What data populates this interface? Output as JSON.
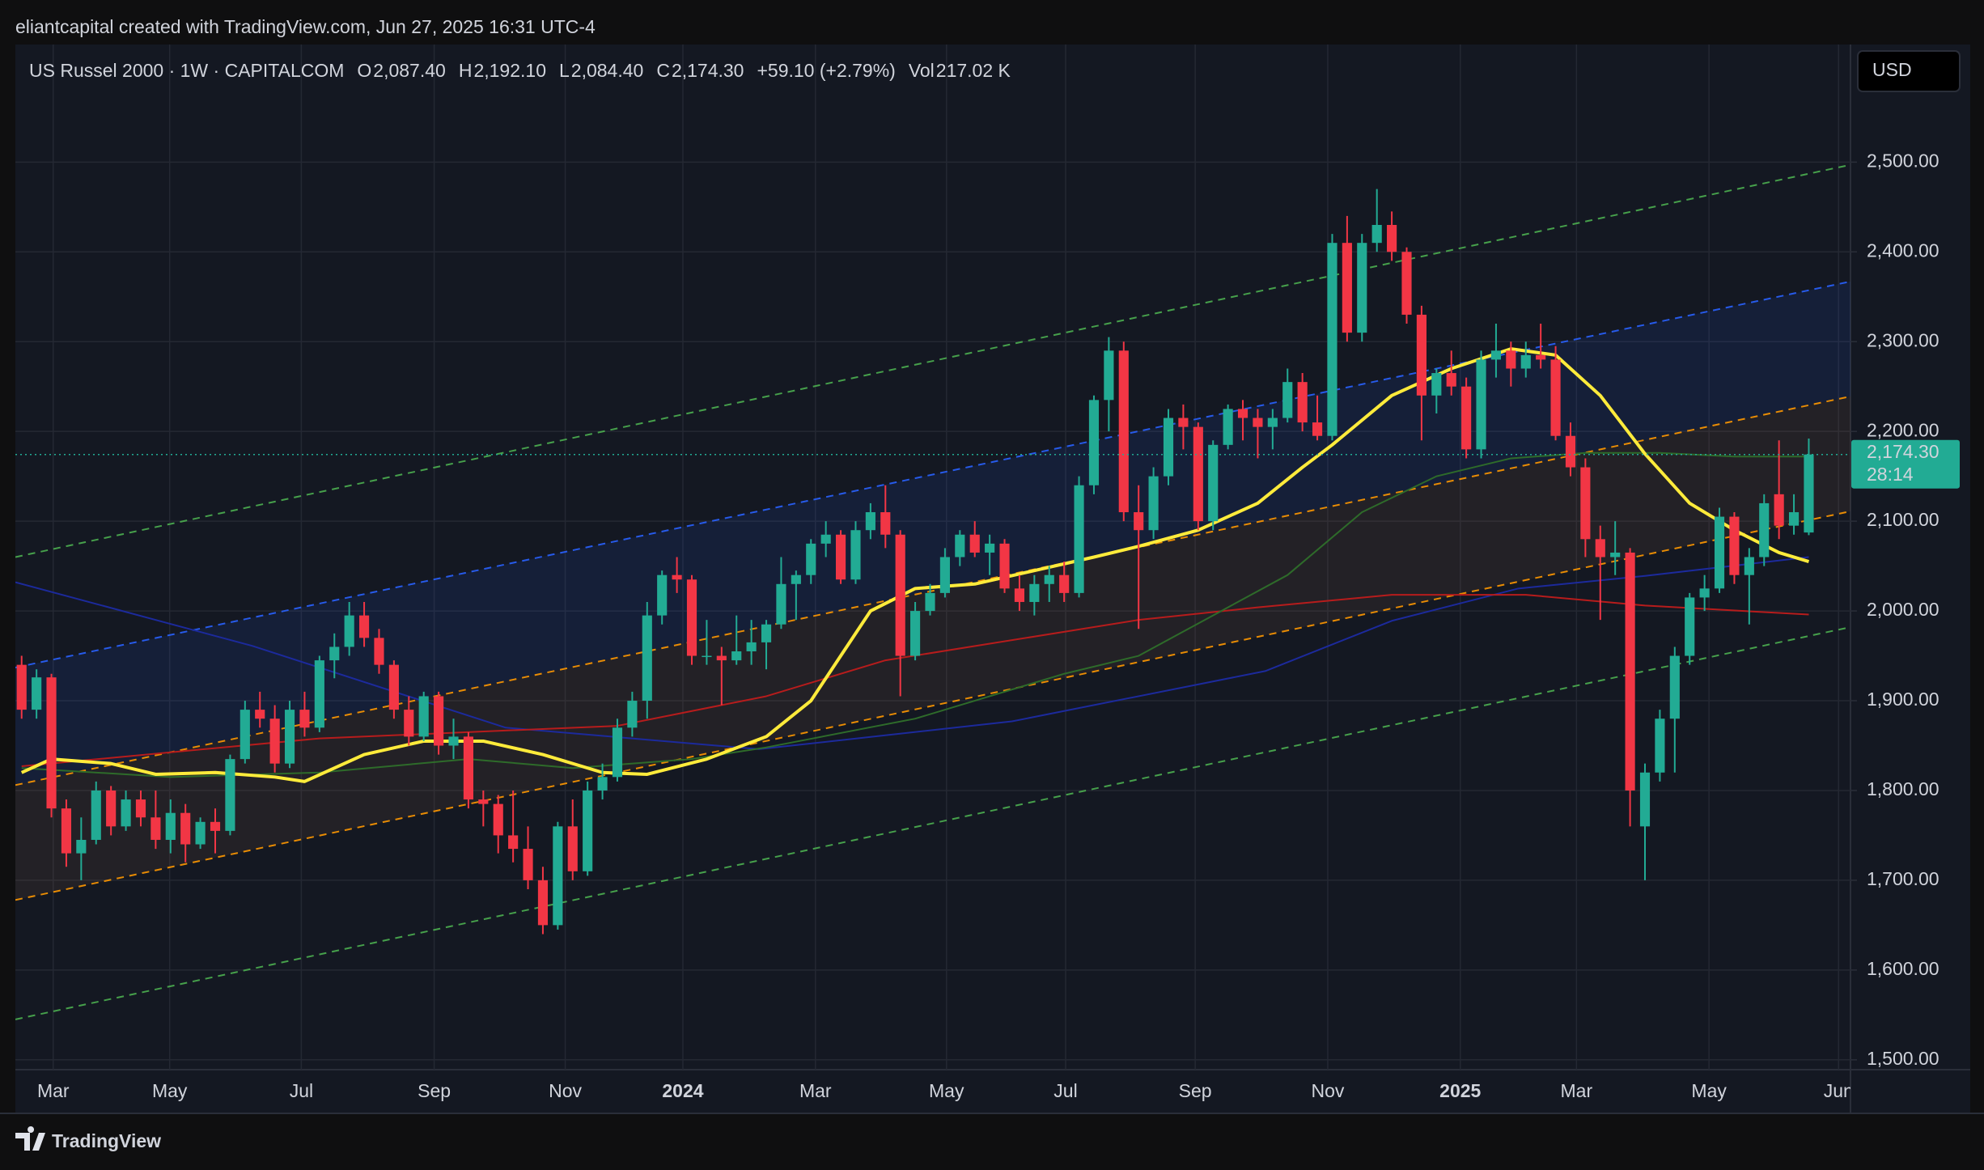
{
  "attribution": "eliantcapital created with TradingView.com, Jun 27, 2025 16:31 UTC-4",
  "brand": "TradingView",
  "chart_data": {
    "type": "candlestick",
    "title": "US Russel 2000 · 1W · CAPITALCOM",
    "currency": "USD",
    "ohlc_legend": [
      {
        "label": "O",
        "value": "2,087.40"
      },
      {
        "label": "H",
        "value": "2,192.10"
      },
      {
        "label": "L",
        "value": "2,084.40"
      },
      {
        "label": "C",
        "value": "2,174.30"
      }
    ],
    "change": "+59.10 (+2.79%)",
    "volume": {
      "label": "Vol",
      "value": "217.02 K"
    },
    "last_price": {
      "value": 2174.3,
      "label": "2,174.30"
    },
    "countdown": "28:14",
    "up_color": "#22ab94",
    "down_color": "#f23645",
    "xlim": [
      -0.42,
      122.8
    ],
    "ylim": [
      1489,
      2631
    ],
    "xticks": [
      {
        "value": 2.12,
        "label": "Mar"
      },
      {
        "value": 9.94,
        "label": "May"
      },
      {
        "value": 18.78,
        "label": "Jul"
      },
      {
        "value": 27.7,
        "label": "Sep"
      },
      {
        "value": 36.5,
        "label": "Nov"
      },
      {
        "value": 44.4,
        "label": "2024"
      },
      {
        "value": 53.3,
        "label": "Mar"
      },
      {
        "value": 62.1,
        "label": "May"
      },
      {
        "value": 70.1,
        "label": "Jul"
      },
      {
        "value": 78.8,
        "label": "Sep"
      },
      {
        "value": 87.7,
        "label": "Nov"
      },
      {
        "value": 96.6,
        "label": "2025"
      },
      {
        "value": 104.4,
        "label": "Mar"
      },
      {
        "value": 113.3,
        "label": "May"
      },
      {
        "value": 122.0,
        "label": "Jun"
      }
    ],
    "yticks": [
      {
        "value": 1500,
        "label": "1,500.00"
      },
      {
        "value": 1600,
        "label": "1,600.00"
      },
      {
        "value": 1700,
        "label": "1,700.00"
      },
      {
        "value": 1800,
        "label": "1,800.00"
      },
      {
        "value": 1900,
        "label": "1,900.00"
      },
      {
        "value": 2000,
        "label": "2,000.00"
      },
      {
        "value": 2100,
        "label": "2,100.00"
      },
      {
        "value": 2200,
        "label": "2,200.00"
      },
      {
        "value": 2300,
        "label": "2,300.00"
      },
      {
        "value": 2400,
        "label": "2,400.00"
      },
      {
        "value": 2500,
        "label": "2,500.00"
      }
    ],
    "grid": true,
    "candles": [
      [
        1940,
        1950,
        1880,
        1890
      ],
      [
        1890,
        1935,
        1880,
        1926
      ],
      [
        1926,
        1930,
        1770,
        1780
      ],
      [
        1780,
        1790,
        1715,
        1730
      ],
      [
        1730,
        1770,
        1700,
        1745
      ],
      [
        1745,
        1810,
        1740,
        1800
      ],
      [
        1800,
        1805,
        1750,
        1760
      ],
      [
        1760,
        1800,
        1755,
        1790
      ],
      [
        1790,
        1800,
        1760,
        1770
      ],
      [
        1770,
        1800,
        1735,
        1745
      ],
      [
        1745,
        1790,
        1730,
        1775
      ],
      [
        1775,
        1785,
        1720,
        1740
      ],
      [
        1740,
        1770,
        1735,
        1765
      ],
      [
        1765,
        1780,
        1730,
        1755
      ],
      [
        1755,
        1840,
        1750,
        1835
      ],
      [
        1835,
        1900,
        1830,
        1890
      ],
      [
        1890,
        1910,
        1870,
        1880
      ],
      [
        1880,
        1895,
        1820,
        1830
      ],
      [
        1830,
        1900,
        1825,
        1890
      ],
      [
        1890,
        1910,
        1860,
        1870
      ],
      [
        1870,
        1950,
        1865,
        1945
      ],
      [
        1945,
        1975,
        1925,
        1960
      ],
      [
        1960,
        2010,
        1950,
        1995
      ],
      [
        1995,
        2010,
        1960,
        1970
      ],
      [
        1970,
        1980,
        1930,
        1940
      ],
      [
        1940,
        1945,
        1880,
        1890
      ],
      [
        1890,
        1905,
        1850,
        1860
      ],
      [
        1860,
        1910,
        1855,
        1905
      ],
      [
        1905,
        1910,
        1840,
        1850
      ],
      [
        1850,
        1880,
        1835,
        1860
      ],
      [
        1860,
        1865,
        1780,
        1790
      ],
      [
        1790,
        1800,
        1760,
        1785
      ],
      [
        1785,
        1795,
        1730,
        1750
      ],
      [
        1750,
        1800,
        1720,
        1735
      ],
      [
        1735,
        1760,
        1690,
        1700
      ],
      [
        1700,
        1715,
        1640,
        1650
      ],
      [
        1650,
        1765,
        1645,
        1760
      ],
      [
        1760,
        1790,
        1700,
        1710
      ],
      [
        1710,
        1810,
        1705,
        1800
      ],
      [
        1800,
        1830,
        1790,
        1815
      ],
      [
        1815,
        1880,
        1810,
        1870
      ],
      [
        1870,
        1910,
        1860,
        1900
      ],
      [
        1900,
        2010,
        1880,
        1995
      ],
      [
        1995,
        2045,
        1985,
        2040
      ],
      [
        2040,
        2060,
        2020,
        2035
      ],
      [
        2035,
        2040,
        1940,
        1950
      ],
      [
        1950,
        1990,
        1940,
        1950
      ],
      [
        1950,
        1960,
        1895,
        1945
      ],
      [
        1945,
        1995,
        1940,
        1955
      ],
      [
        1955,
        1990,
        1940,
        1965
      ],
      [
        1965,
        1990,
        1935,
        1985
      ],
      [
        1985,
        2060,
        1980,
        2030
      ],
      [
        2030,
        2045,
        1990,
        2040
      ],
      [
        2040,
        2080,
        2030,
        2075
      ],
      [
        2075,
        2100,
        2060,
        2085
      ],
      [
        2085,
        2090,
        2030,
        2035
      ],
      [
        2035,
        2100,
        2030,
        2090
      ],
      [
        2090,
        2120,
        2080,
        2110
      ],
      [
        2110,
        2140,
        2070,
        2085
      ],
      [
        2085,
        2090,
        1905,
        1950
      ],
      [
        1950,
        2010,
        1945,
        2000
      ],
      [
        2000,
        2030,
        1995,
        2020
      ],
      [
        2020,
        2070,
        2015,
        2060
      ],
      [
        2060,
        2090,
        2050,
        2085
      ],
      [
        2085,
        2100,
        2060,
        2065
      ],
      [
        2065,
        2085,
        2040,
        2075
      ],
      [
        2075,
        2080,
        2020,
        2025
      ],
      [
        2025,
        2040,
        2000,
        2010
      ],
      [
        2010,
        2040,
        1995,
        2030
      ],
      [
        2030,
        2050,
        2010,
        2040
      ],
      [
        2040,
        2055,
        2010,
        2020
      ],
      [
        2020,
        2150,
        2015,
        2140
      ],
      [
        2140,
        2240,
        2130,
        2235
      ],
      [
        2235,
        2305,
        2200,
        2290
      ],
      [
        2290,
        2300,
        2100,
        2110
      ],
      [
        2110,
        2140,
        1980,
        2090
      ],
      [
        2090,
        2160,
        2080,
        2150
      ],
      [
        2150,
        2225,
        2140,
        2215
      ],
      [
        2215,
        2230,
        2180,
        2205
      ],
      [
        2205,
        2210,
        2090,
        2100
      ],
      [
        2100,
        2190,
        2090,
        2185
      ],
      [
        2185,
        2230,
        2180,
        2225
      ],
      [
        2225,
        2235,
        2190,
        2215
      ],
      [
        2215,
        2225,
        2170,
        2205
      ],
      [
        2205,
        2225,
        2180,
        2215
      ],
      [
        2215,
        2270,
        2210,
        2255
      ],
      [
        2255,
        2265,
        2200,
        2210
      ],
      [
        2210,
        2240,
        2190,
        2195
      ],
      [
        2195,
        2420,
        2190,
        2410
      ],
      [
        2410,
        2440,
        2300,
        2310
      ],
      [
        2310,
        2420,
        2300,
        2410
      ],
      [
        2410,
        2470,
        2400,
        2430
      ],
      [
        2430,
        2445,
        2390,
        2400
      ],
      [
        2400,
        2405,
        2320,
        2330
      ],
      [
        2330,
        2340,
        2190,
        2240
      ],
      [
        2240,
        2270,
        2220,
        2265
      ],
      [
        2265,
        2290,
        2240,
        2250
      ],
      [
        2250,
        2260,
        2170,
        2180
      ],
      [
        2180,
        2290,
        2170,
        2280
      ],
      [
        2280,
        2320,
        2260,
        2290
      ],
      [
        2290,
        2300,
        2250,
        2270
      ],
      [
        2270,
        2300,
        2260,
        2285
      ],
      [
        2285,
        2320,
        2270,
        2280
      ],
      [
        2280,
        2295,
        2190,
        2195
      ],
      [
        2195,
        2210,
        2150,
        2160
      ],
      [
        2160,
        2170,
        2060,
        2080
      ],
      [
        2080,
        2095,
        1990,
        2060
      ],
      [
        2060,
        2100,
        2040,
        2065
      ],
      [
        2065,
        2070,
        1760,
        1800
      ],
      [
        1760,
        1830,
        1700,
        1820
      ],
      [
        1820,
        1890,
        1810,
        1880
      ],
      [
        1880,
        1960,
        1820,
        1950
      ],
      [
        1950,
        2020,
        1940,
        2015
      ],
      [
        2015,
        2040,
        2000,
        2025
      ],
      [
        2025,
        2115,
        2020,
        2105
      ],
      [
        2105,
        2110,
        2030,
        2040
      ],
      [
        2040,
        2070,
        1985,
        2060
      ],
      [
        2060,
        2130,
        2050,
        2120
      ],
      [
        2130,
        2190,
        2080,
        2095
      ],
      [
        2095,
        2130,
        2085,
        2110
      ],
      [
        2087.4,
        2192.1,
        2084.4,
        2174.3
      ]
    ],
    "channels": [
      {
        "color": "#4caf50",
        "points": [
          [
            -0.42,
            2060
          ],
          [
            122.8,
            2497
          ]
        ]
      },
      {
        "color": "#2962ff",
        "points": [
          [
            -0.42,
            1937
          ],
          [
            122.8,
            2367
          ]
        ],
        "fill": "rgba(41,98,255,0.10)"
      },
      {
        "color": "#ff9800",
        "points": [
          [
            -0.42,
            1806
          ],
          [
            122.8,
            2239
          ]
        ],
        "fill": "rgba(150,100,70,0.12)"
      },
      {
        "color": "#ff9800",
        "points": [
          [
            -0.42,
            1678
          ],
          [
            122.8,
            2111
          ]
        ]
      },
      {
        "color": "#4caf50",
        "points": [
          [
            -0.42,
            1545
          ],
          [
            122.8,
            1982
          ]
        ]
      }
    ],
    "moving_averages": [
      {
        "color": "#1c2a9c",
        "width": 2,
        "points": [
          [
            -0.42,
            2032
          ],
          [
            15.5,
            1961
          ],
          [
            32.5,
            1870
          ],
          [
            49.5,
            1846
          ],
          [
            66.5,
            1877
          ],
          [
            83.5,
            1933
          ],
          [
            92,
            1989
          ],
          [
            100.5,
            2025
          ],
          [
            109,
            2039
          ],
          [
            120,
            2060
          ]
        ]
      },
      {
        "color": "#b71c1c",
        "width": 2,
        "points": [
          [
            0,
            1827
          ],
          [
            20,
            1858
          ],
          [
            40,
            1872
          ],
          [
            50,
            1905
          ],
          [
            58,
            1945
          ],
          [
            75,
            1990
          ],
          [
            83,
            2004
          ],
          [
            92,
            2018
          ],
          [
            101,
            2018
          ],
          [
            109,
            2006
          ],
          [
            120,
            1996
          ]
        ]
      },
      {
        "color": "#2e6b2a",
        "width": 2,
        "points": [
          [
            0,
            1825
          ],
          [
            10,
            1815
          ],
          [
            20,
            1820
          ],
          [
            30,
            1835
          ],
          [
            37,
            1825
          ],
          [
            45,
            1835
          ],
          [
            50,
            1848
          ],
          [
            60,
            1880
          ],
          [
            70,
            1930
          ],
          [
            75,
            1950
          ],
          [
            80,
            1995
          ],
          [
            85,
            2040
          ],
          [
            90,
            2110
          ],
          [
            95,
            2150
          ],
          [
            100,
            2170
          ],
          [
            105,
            2176
          ],
          [
            110,
            2176
          ],
          [
            115,
            2172
          ],
          [
            120,
            2172
          ]
        ]
      },
      {
        "color": "#ffeb3b",
        "width": 4,
        "points": [
          [
            0,
            1820
          ],
          [
            2,
            1835
          ],
          [
            6,
            1830
          ],
          [
            9,
            1818
          ],
          [
            13,
            1820
          ],
          [
            17,
            1815
          ],
          [
            19,
            1810
          ],
          [
            23,
            1840
          ],
          [
            27,
            1855
          ],
          [
            31,
            1855
          ],
          [
            35,
            1840
          ],
          [
            39,
            1820
          ],
          [
            42,
            1818
          ],
          [
            46,
            1835
          ],
          [
            50,
            1860
          ],
          [
            53,
            1900
          ],
          [
            55,
            1950
          ],
          [
            57,
            2000
          ],
          [
            60,
            2025
          ],
          [
            64,
            2030
          ],
          [
            68,
            2045
          ],
          [
            72,
            2060
          ],
          [
            75,
            2072
          ],
          [
            79,
            2090
          ],
          [
            83,
            2120
          ],
          [
            86,
            2160
          ],
          [
            88,
            2185
          ],
          [
            92,
            2240
          ],
          [
            96,
            2270
          ],
          [
            100,
            2292
          ],
          [
            103,
            2285
          ],
          [
            106,
            2240
          ],
          [
            109,
            2175
          ],
          [
            112,
            2120
          ],
          [
            115,
            2090
          ],
          [
            118,
            2065
          ],
          [
            120,
            2055
          ]
        ]
      }
    ]
  }
}
